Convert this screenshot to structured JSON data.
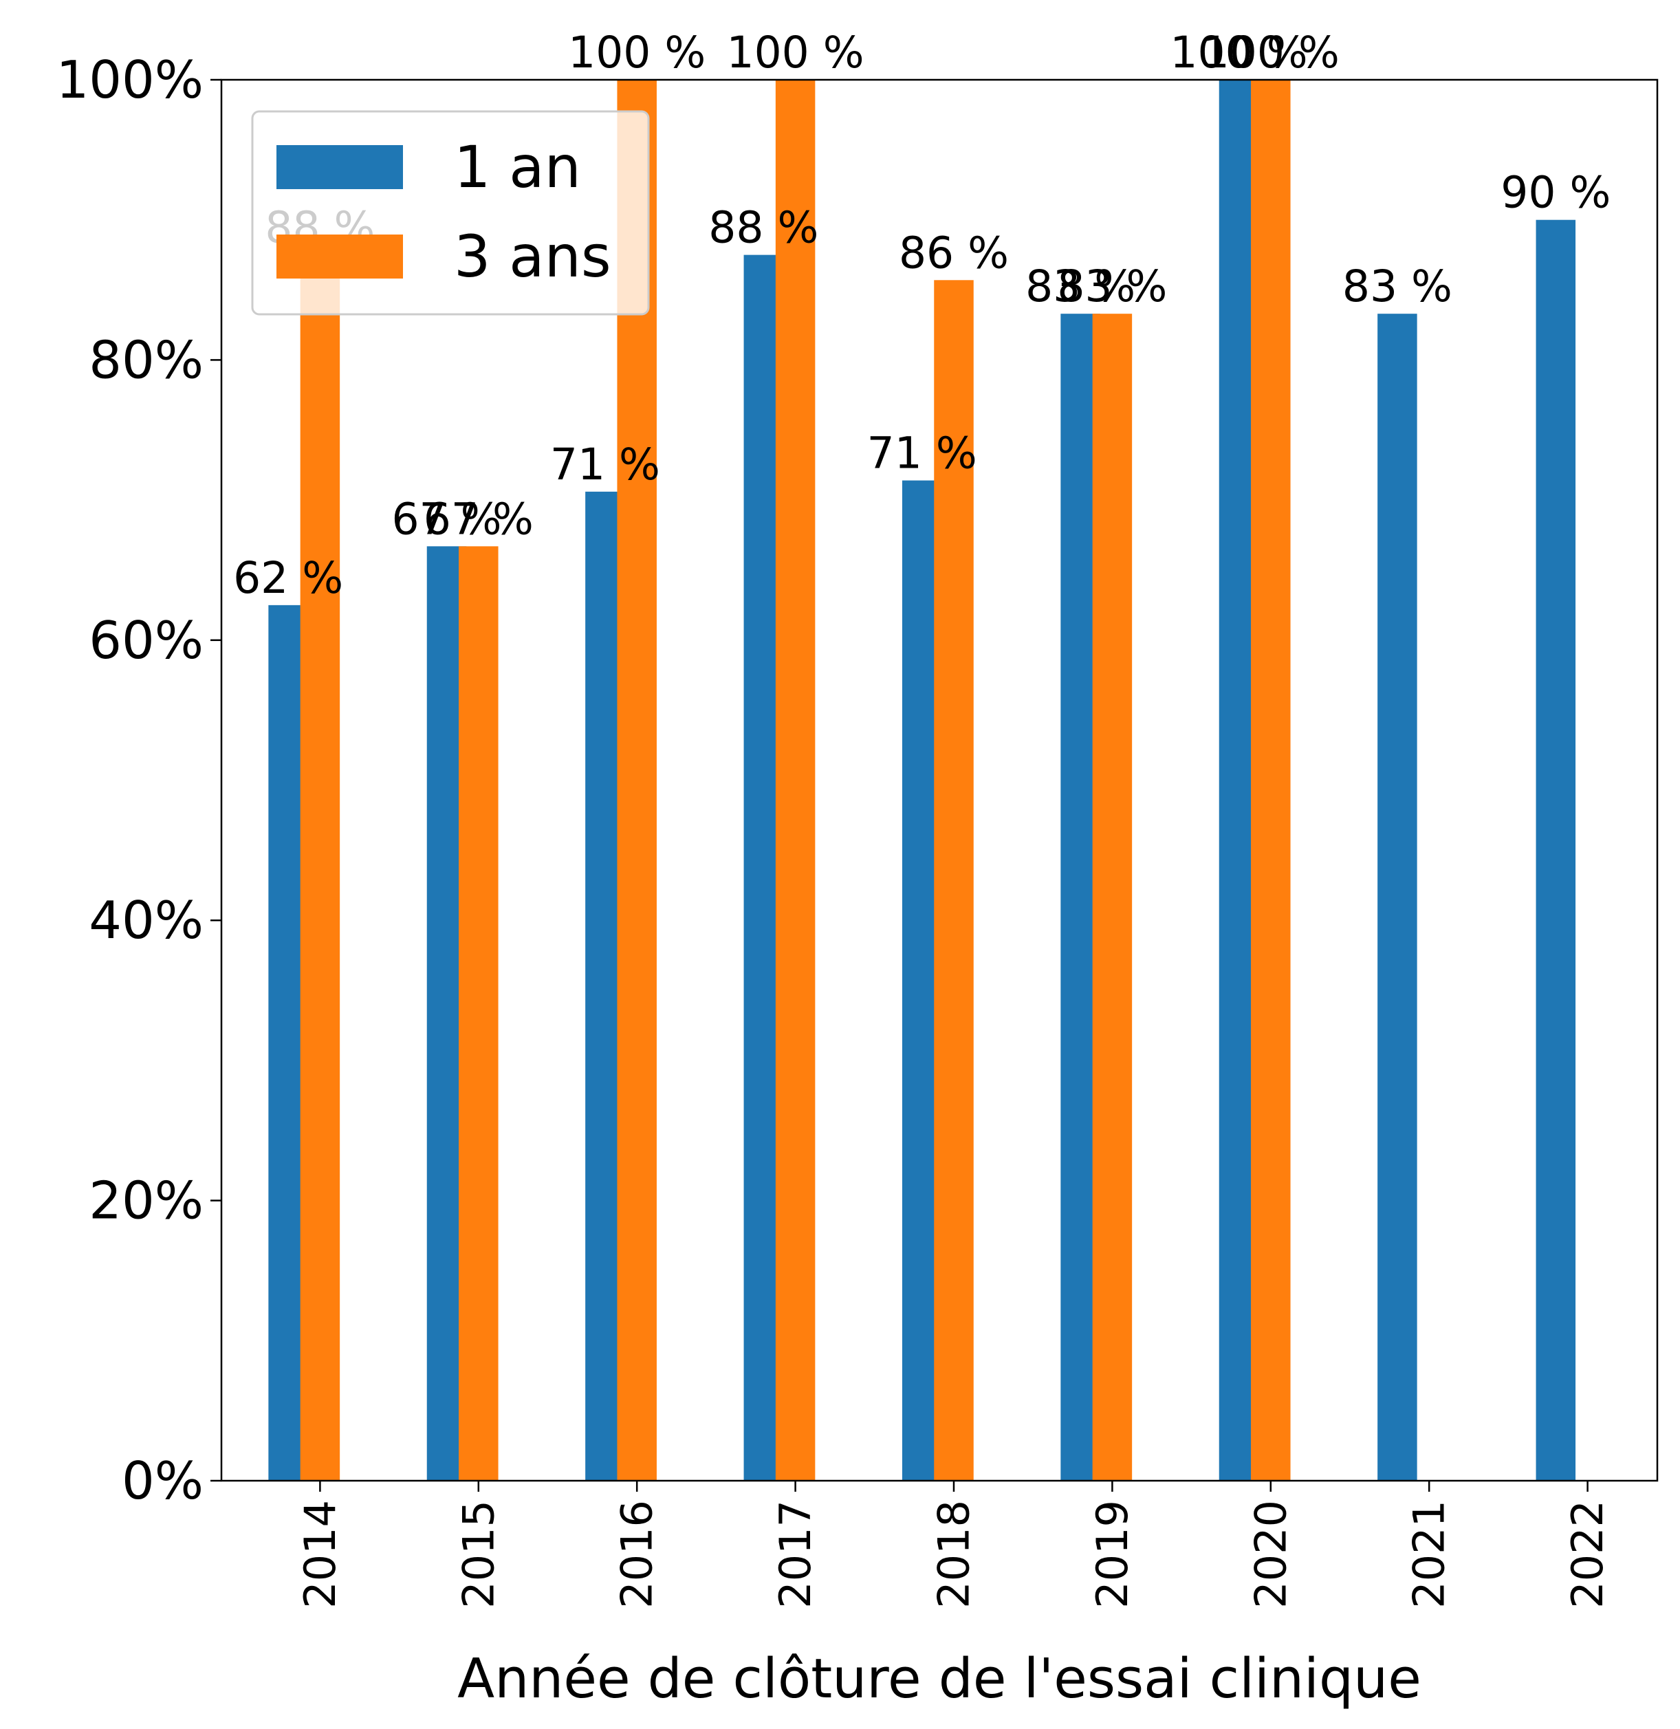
{
  "chart_data": {
    "type": "bar",
    "title": "",
    "xlabel": "Année de clôture de l'essai clinique",
    "ylabel": "",
    "categories": [
      "2014",
      "2015",
      "2016",
      "2017",
      "2018",
      "2019",
      "2020",
      "2021",
      "2022"
    ],
    "series": [
      {
        "name": "1 an",
        "color": "#1f77b4",
        "values": [
          62.5,
          66.7,
          70.6,
          87.5,
          71.4,
          83.3,
          100,
          83.3,
          90
        ],
        "labels": [
          "62 %",
          "67 %",
          "71 %",
          "88 %",
          "71 %",
          "83 %",
          "100 %",
          "83 %",
          "90 %"
        ]
      },
      {
        "name": "3 ans",
        "color": "#ff7f0e",
        "values": [
          87.5,
          66.7,
          100,
          100,
          85.7,
          83.3,
          100,
          null,
          null
        ],
        "labels": [
          "88 %",
          "67 %",
          "100 %",
          "100 %",
          "86 %",
          "83 %",
          "100 %",
          null,
          null
        ]
      }
    ],
    "ylim": [
      0,
      100
    ],
    "yticks": [
      0,
      20,
      40,
      60,
      80,
      100
    ],
    "ytick_labels": [
      "0%",
      "20%",
      "40%",
      "60%",
      "80%",
      "100%"
    ],
    "grid": false,
    "legend": {
      "position": "top-left",
      "entries": [
        "1 an",
        "3 ans"
      ]
    }
  }
}
